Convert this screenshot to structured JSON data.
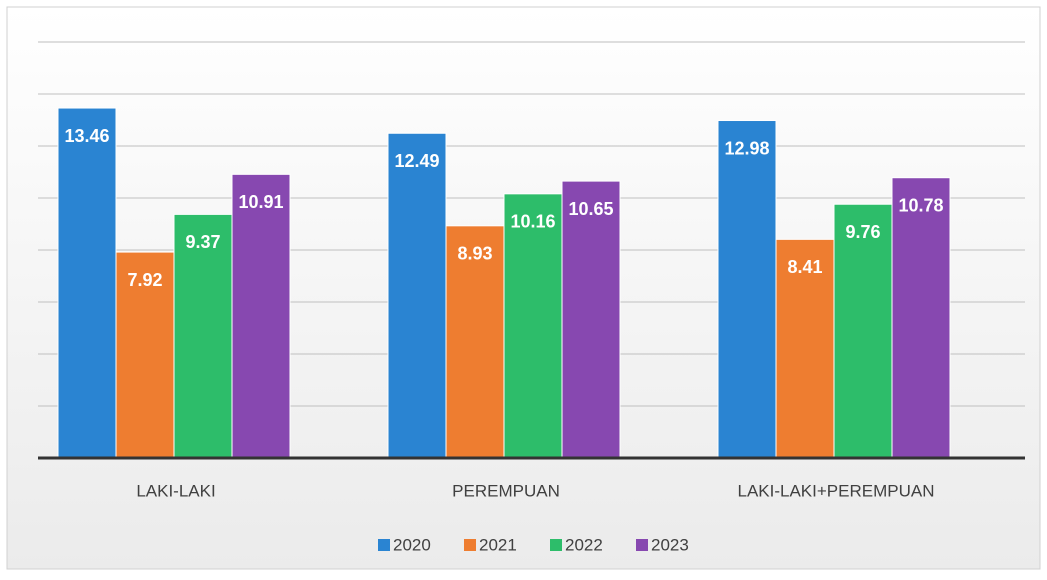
{
  "chart_data": {
    "type": "bar",
    "categories": [
      "LAKI-LAKI",
      "PEREMPUAN",
      "LAKI-LAKI+PEREMPUAN"
    ],
    "series": [
      {
        "name": "2020",
        "color": "#2a84d2",
        "values": [
          13.46,
          12.49,
          12.98
        ]
      },
      {
        "name": "2021",
        "color": "#ee7d30",
        "values": [
          7.92,
          8.93,
          8.41
        ]
      },
      {
        "name": "2022",
        "color": "#2dbd6a",
        "values": [
          9.37,
          10.16,
          9.76
        ]
      },
      {
        "name": "2023",
        "color": "#8748b0",
        "values": [
          10.91,
          10.65,
          10.78
        ]
      }
    ],
    "ylim": [
      0,
      16
    ],
    "yticks": [
      0,
      2,
      4,
      6,
      8,
      10,
      12,
      14,
      16
    ],
    "grid": true,
    "legend": "bottom"
  }
}
